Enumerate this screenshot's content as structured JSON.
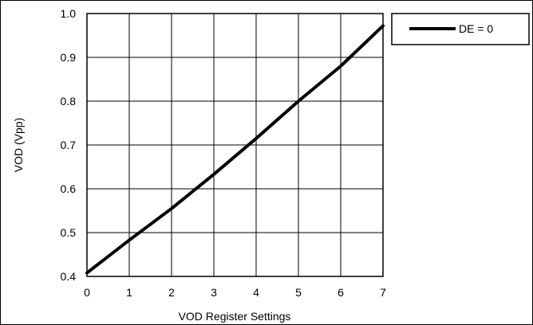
{
  "chart_data": {
    "type": "line",
    "title": "",
    "xlabel": "VOD Register Settings",
    "ylabel": "VOD (Vpp)",
    "xlim": [
      0,
      7
    ],
    "ylim": [
      0.4,
      1.0
    ],
    "x_ticks": [
      "0",
      "1",
      "2",
      "3",
      "4",
      "5",
      "6",
      "7"
    ],
    "y_ticks": [
      "0.4",
      "0.5",
      "0.6",
      "0.7",
      "0.8",
      "0.9",
      "1.0"
    ],
    "grid": true,
    "legend_position": "top-right, outside plot",
    "series": [
      {
        "name": "DE = 0",
        "color": "#000000",
        "x": [
          0,
          1,
          2,
          3,
          4,
          5,
          6,
          7
        ],
        "y": [
          0.408,
          0.483,
          0.555,
          0.633,
          0.715,
          0.8,
          0.88,
          0.972
        ]
      }
    ]
  }
}
